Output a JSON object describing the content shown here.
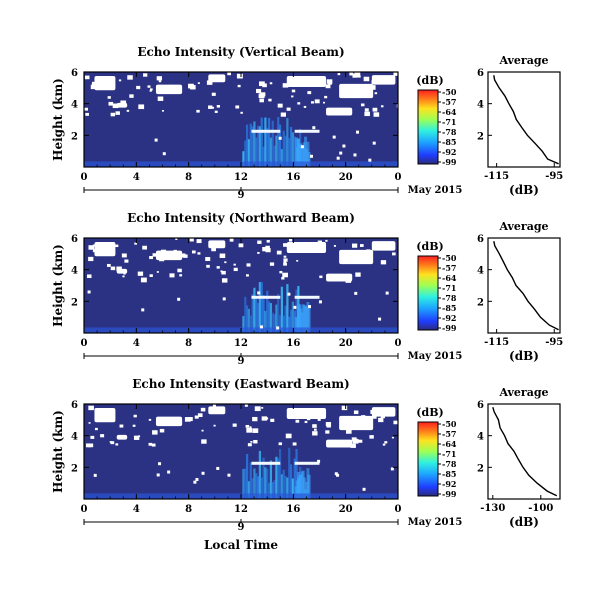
{
  "figure": {
    "date_label": "May 2015",
    "xlabel": "Local Time"
  },
  "chart_data": [
    {
      "type": "heatmap",
      "title": "Echo Intensity (Vertical Beam)",
      "xlabel": "",
      "ylabel": "Height (km)",
      "x_ticks": [
        "0",
        "4",
        "8",
        "12",
        "16",
        "20",
        "0"
      ],
      "y_ticks": [
        "2",
        "4",
        "6"
      ],
      "xlim": [
        0,
        24
      ],
      "ylim": [
        0,
        6
      ],
      "day_label": "9",
      "colorbar": {
        "unit": "(dB)",
        "ticks": [
          "-50",
          "-57",
          "-64",
          "-71",
          "-78",
          "-85",
          "-92",
          "-99"
        ]
      },
      "average": {
        "title": "Average",
        "xlabel": "(dB)",
        "x_ticks": [
          "-115",
          "-95"
        ],
        "xlim": [
          -118,
          -93
        ],
        "y_ticks": [
          "2",
          "4",
          "6"
        ],
        "ylim": [
          0,
          6
        ],
        "profile": [
          {
            "h": 0.2,
            "db": -93.5
          },
          {
            "h": 0.5,
            "db": -97
          },
          {
            "h": 1.0,
            "db": -99.5
          },
          {
            "h": 1.5,
            "db": -102
          },
          {
            "h": 2.0,
            "db": -104
          },
          {
            "h": 2.5,
            "db": -106
          },
          {
            "h": 3.0,
            "db": -108
          },
          {
            "h": 3.5,
            "db": -109.5
          },
          {
            "h": 4.0,
            "db": -111
          },
          {
            "h": 4.5,
            "db": -112.5
          },
          {
            "h": 5.0,
            "db": -114
          },
          {
            "h": 5.5,
            "db": -115.5
          },
          {
            "h": 5.8,
            "db": -116
          }
        ]
      }
    },
    {
      "type": "heatmap",
      "title": "Echo Intensity (Northward Beam)",
      "xlabel": "",
      "ylabel": "Height (km)",
      "x_ticks": [
        "0",
        "4",
        "8",
        "12",
        "16",
        "20",
        "0"
      ],
      "y_ticks": [
        "2",
        "4",
        "6"
      ],
      "xlim": [
        0,
        24
      ],
      "ylim": [
        0,
        6
      ],
      "day_label": "9",
      "colorbar": {
        "unit": "(dB)",
        "ticks": [
          "-50",
          "-57",
          "-64",
          "-71",
          "-78",
          "-85",
          "-92",
          "-99"
        ]
      },
      "average": {
        "title": "Average",
        "xlabel": "(dB)",
        "x_ticks": [
          "-115",
          "-95"
        ],
        "xlim": [
          -118,
          -93
        ],
        "y_ticks": [
          "2",
          "4",
          "6"
        ],
        "ylim": [
          0,
          6
        ],
        "profile": [
          {
            "h": 0.2,
            "db": -93.5
          },
          {
            "h": 0.5,
            "db": -97
          },
          {
            "h": 1.0,
            "db": -99.5
          },
          {
            "h": 1.5,
            "db": -102
          },
          {
            "h": 2.0,
            "db": -104
          },
          {
            "h": 2.5,
            "db": -106
          },
          {
            "h": 3.0,
            "db": -108
          },
          {
            "h": 3.5,
            "db": -109.5
          },
          {
            "h": 4.0,
            "db": -111
          },
          {
            "h": 4.5,
            "db": -112.5
          },
          {
            "h": 5.0,
            "db": -114
          },
          {
            "h": 5.5,
            "db": -115.5
          },
          {
            "h": 5.8,
            "db": -116
          }
        ]
      }
    },
    {
      "type": "heatmap",
      "title": "Echo Intensity (Eastward Beam)",
      "xlabel": "Local Time",
      "ylabel": "Height (km)",
      "x_ticks": [
        "0",
        "4",
        "8",
        "12",
        "16",
        "20",
        "0"
      ],
      "y_ticks": [
        "2",
        "4",
        "6"
      ],
      "xlim": [
        0,
        24
      ],
      "ylim": [
        0,
        6
      ],
      "day_label": "9",
      "colorbar": {
        "unit": "(dB)",
        "ticks": [
          "-50",
          "-57",
          "-64",
          "-71",
          "-78",
          "-85",
          "-92",
          "-99"
        ]
      },
      "average": {
        "title": "Average",
        "xlabel": "(dB)",
        "x_ticks": [
          "-130",
          "-100"
        ],
        "xlim": [
          -133,
          -88
        ],
        "y_ticks": [
          "2",
          "4",
          "6"
        ],
        "ylim": [
          0,
          6
        ],
        "profile": [
          {
            "h": 0.2,
            "db": -90
          },
          {
            "h": 0.5,
            "db": -96
          },
          {
            "h": 1.0,
            "db": -102
          },
          {
            "h": 1.5,
            "db": -107
          },
          {
            "h": 2.0,
            "db": -111
          },
          {
            "h": 2.5,
            "db": -114
          },
          {
            "h": 3.0,
            "db": -117
          },
          {
            "h": 3.5,
            "db": -120
          },
          {
            "h": 4.0,
            "db": -123
          },
          {
            "h": 4.5,
            "db": -125
          },
          {
            "h": 5.0,
            "db": -127
          },
          {
            "h": 5.5,
            "db": -129
          },
          {
            "h": 5.8,
            "db": -130
          }
        ]
      }
    }
  ]
}
